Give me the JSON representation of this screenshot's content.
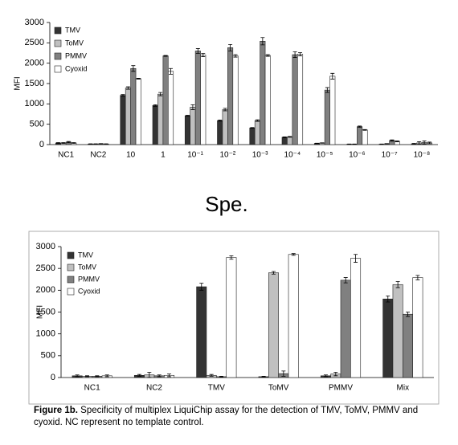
{
  "chart_data": [
    {
      "type": "bar",
      "y_label": "MFI",
      "legend": "top-left",
      "categories": [
        "NC1",
        "NC2",
        "10",
        "1",
        "10⁻¹",
        "10⁻²",
        "10⁻³",
        "10⁻⁴",
        "10⁻⁵",
        "10⁻⁶",
        "10⁻⁷",
        "10⁻⁸"
      ],
      "ylim": [
        0,
        3000
      ],
      "yticks": [
        0,
        500,
        1000,
        1500,
        2000,
        2500,
        3000
      ],
      "series": [
        {
          "name": "TMV",
          "color": "#333333",
          "values": [
            40,
            15,
            1210,
            960,
            710,
            590,
            410,
            180,
            30,
            10,
            10,
            20
          ],
          "errors": [
            10,
            5,
            20,
            20,
            10,
            15,
            10,
            10,
            5,
            5,
            5,
            10
          ]
        },
        {
          "name": "ToMV",
          "color": "#c0c0c0",
          "values": [
            40,
            15,
            1390,
            1240,
            920,
            860,
            590,
            190,
            40,
            10,
            20,
            40
          ],
          "errors": [
            10,
            5,
            30,
            40,
            60,
            30,
            20,
            10,
            5,
            5,
            5,
            30
          ]
        },
        {
          "name": "PMMV",
          "color": "#808080",
          "values": [
            60,
            20,
            1870,
            2180,
            2300,
            2380,
            2540,
            2210,
            1340,
            440,
            100,
            50
          ],
          "errors": [
            15,
            5,
            70,
            10,
            60,
            80,
            90,
            70,
            60,
            15,
            15,
            40
          ]
        },
        {
          "name": "Cyoxid",
          "color": "#ffffff",
          "values": [
            40,
            15,
            1620,
            1800,
            2200,
            2180,
            2190,
            2220,
            1680,
            360,
            80,
            40
          ],
          "errors": [
            10,
            5,
            10,
            70,
            40,
            30,
            20,
            40,
            70,
            10,
            10,
            20
          ]
        }
      ]
    },
    {
      "type": "bar",
      "y_label": "MFI",
      "legend": "top-left",
      "categories": [
        "NC1",
        "NC2",
        "TMV",
        "ToMV",
        "PMMV",
        "Mix"
      ],
      "ylim": [
        0,
        3000
      ],
      "yticks": [
        0,
        500,
        1000,
        1500,
        2000,
        2500,
        3000
      ],
      "series": [
        {
          "name": "TMV",
          "color": "#333333",
          "values": [
            40,
            50,
            2080,
            20,
            40,
            1800
          ],
          "errors": [
            20,
            20,
            80,
            10,
            20,
            70
          ]
        },
        {
          "name": "ToMV",
          "color": "#c0c0c0",
          "values": [
            30,
            60,
            50,
            2400,
            80,
            2130
          ],
          "errors": [
            10,
            60,
            20,
            30,
            40,
            70
          ]
        },
        {
          "name": "PMMV",
          "color": "#808080",
          "values": [
            30,
            40,
            20,
            90,
            2230,
            1450
          ],
          "errors": [
            10,
            20,
            10,
            60,
            60,
            50
          ]
        },
        {
          "name": "Cyoxid",
          "color": "#ffffff",
          "values": [
            40,
            50,
            2750,
            2820,
            2730,
            2290
          ],
          "errors": [
            20,
            30,
            40,
            20,
            90,
            50
          ]
        }
      ]
    }
  ],
  "heading": "Spe.",
  "caption": {
    "label": "Figure 1b.",
    "text": "Specificity of multiplex LiquiChip assay for the detection of TMV, ToMV, PMMV and cyoxid. NC represent no template control."
  }
}
